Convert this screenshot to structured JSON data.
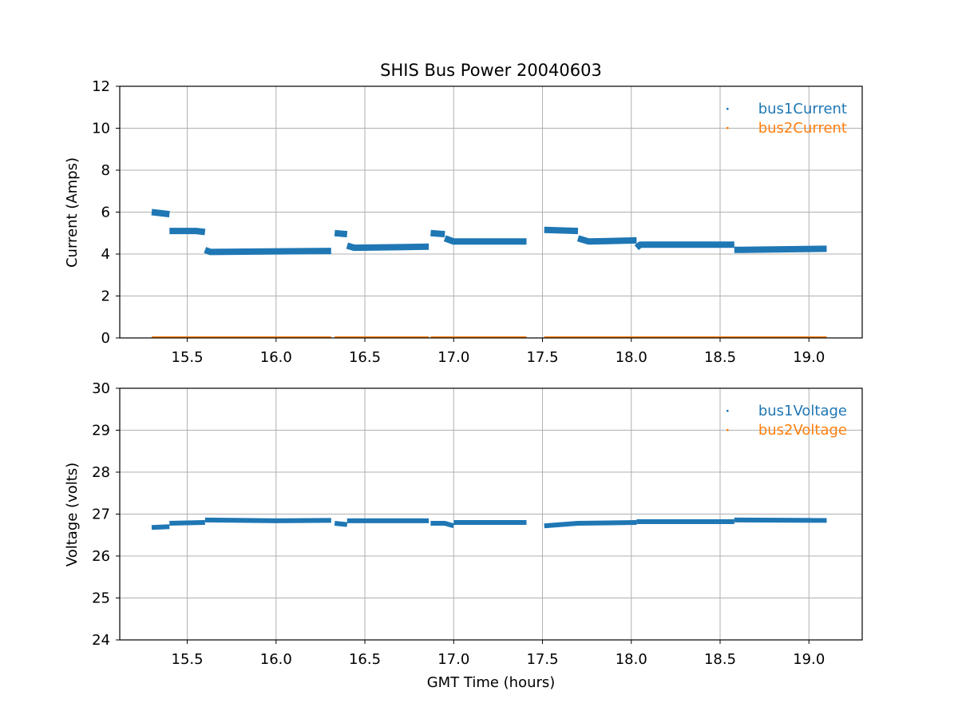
{
  "chart_data": [
    {
      "type": "scatter",
      "title": "SHIS Bus Power 20040603",
      "xlabel": "",
      "ylabel": "Current (Amps)",
      "xlim": [
        15.12,
        19.3
      ],
      "ylim": [
        0,
        12
      ],
      "xticks": [
        "15.5",
        "16.0",
        "16.5",
        "17.0",
        "17.5",
        "18.0",
        "18.5",
        "19.0"
      ],
      "yticks": [
        "0",
        "2",
        "4",
        "6",
        "8",
        "10",
        "12"
      ],
      "grid": true,
      "legend_position": "top-right",
      "series": [
        {
          "name": "bus1Current",
          "color": "#1f77b4",
          "segments": [
            {
              "x": [
                15.3,
                15.4
              ],
              "y": [
                6.0,
                5.9
              ]
            },
            {
              "x": [
                15.4,
                15.55,
                15.6
              ],
              "y": [
                5.1,
                5.1,
                5.05
              ]
            },
            {
              "x": [
                15.6,
                15.63,
                16.31
              ],
              "y": [
                4.2,
                4.1,
                4.15
              ]
            },
            {
              "x": [
                16.33,
                16.4
              ],
              "y": [
                5.0,
                4.95
              ]
            },
            {
              "x": [
                16.4,
                16.44,
                16.86
              ],
              "y": [
                4.4,
                4.3,
                4.35
              ]
            },
            {
              "x": [
                16.87,
                16.95
              ],
              "y": [
                5.0,
                4.95
              ]
            },
            {
              "x": [
                16.95,
                17.0,
                17.41
              ],
              "y": [
                4.75,
                4.6,
                4.6
              ]
            },
            {
              "x": [
                17.51,
                17.7
              ],
              "y": [
                5.15,
                5.1
              ]
            },
            {
              "x": [
                17.7,
                17.76,
                18.03
              ],
              "y": [
                4.75,
                4.6,
                4.65
              ]
            },
            {
              "x": [
                18.03,
                18.05,
                18.58
              ],
              "y": [
                4.3,
                4.45,
                4.45
              ]
            },
            {
              "x": [
                18.58,
                18.62,
                19.1
              ],
              "y": [
                4.2,
                4.2,
                4.25
              ]
            }
          ]
        },
        {
          "name": "bus2Current",
          "color": "#ff7f0e",
          "segments": [
            {
              "x": [
                15.3,
                16.31
              ],
              "y": [
                0.03,
                0.03
              ]
            },
            {
              "x": [
                16.33,
                16.86
              ],
              "y": [
                0.03,
                0.03
              ]
            },
            {
              "x": [
                16.87,
                17.41
              ],
              "y": [
                0.03,
                0.03
              ]
            },
            {
              "x": [
                17.51,
                18.03
              ],
              "y": [
                0.03,
                0.03
              ]
            },
            {
              "x": [
                18.03,
                18.58
              ],
              "y": [
                0.03,
                0.03
              ]
            },
            {
              "x": [
                18.58,
                19.1
              ],
              "y": [
                0.03,
                0.03
              ]
            }
          ]
        }
      ]
    },
    {
      "type": "scatter",
      "title": "",
      "xlabel": "GMT Time (hours)",
      "ylabel": "Voltage (volts)",
      "xlim": [
        15.12,
        19.3
      ],
      "ylim": [
        24,
        30
      ],
      "xticks": [
        "15.5",
        "16.0",
        "16.5",
        "17.0",
        "17.5",
        "18.0",
        "18.5",
        "19.0"
      ],
      "yticks": [
        "24",
        "25",
        "26",
        "27",
        "28",
        "29",
        "30"
      ],
      "grid": true,
      "legend_position": "top-right",
      "series": [
        {
          "name": "bus1Voltage",
          "color": "#1f77b4",
          "segments": [
            {
              "x": [
                15.3,
                15.4
              ],
              "y": [
                26.68,
                26.7
              ]
            },
            {
              "x": [
                15.4,
                15.6
              ],
              "y": [
                26.78,
                26.8
              ]
            },
            {
              "x": [
                15.6,
                16.0,
                16.31
              ],
              "y": [
                26.86,
                26.84,
                26.85
              ]
            },
            {
              "x": [
                16.33,
                16.4
              ],
              "y": [
                26.78,
                26.75
              ]
            },
            {
              "x": [
                16.4,
                16.86
              ],
              "y": [
                26.84,
                26.84
              ]
            },
            {
              "x": [
                16.87,
                16.95,
                17.0
              ],
              "y": [
                26.78,
                26.78,
                26.72
              ]
            },
            {
              "x": [
                17.0,
                17.41
              ],
              "y": [
                26.8,
                26.8
              ]
            },
            {
              "x": [
                17.51,
                17.7,
                18.03
              ],
              "y": [
                26.72,
                26.78,
                26.8
              ]
            },
            {
              "x": [
                18.03,
                18.58
              ],
              "y": [
                26.82,
                26.82
              ]
            },
            {
              "x": [
                18.58,
                19.1
              ],
              "y": [
                26.86,
                26.85
              ]
            }
          ]
        },
        {
          "name": "bus2Voltage",
          "color": "#ff7f0e",
          "segments": []
        }
      ]
    }
  ]
}
